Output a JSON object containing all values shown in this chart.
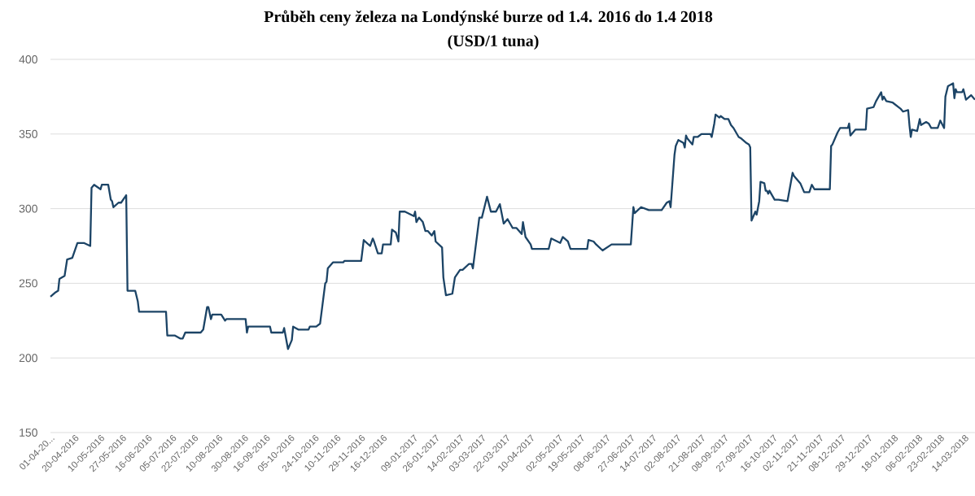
{
  "chart_data": {
    "type": "line",
    "title": "Průběh ceny železa na Londýnské burze od 1.4. 2016 do 1.4 2018",
    "subtitle": "(USD/1 tuna)",
    "x": [
      "2016-04-01",
      "2016-04-05",
      "2016-04-07",
      "2016-04-08",
      "2016-04-12",
      "2016-04-14",
      "2016-04-18",
      "2016-04-22",
      "2016-04-27",
      "2016-05-02",
      "2016-05-03",
      "2016-05-05",
      "2016-05-10",
      "2016-05-11",
      "2016-05-16",
      "2016-05-18",
      "2016-05-19",
      "2016-05-20",
      "2016-05-24",
      "2016-05-26",
      "2016-05-30",
      "2016-05-31",
      "2016-06-06",
      "2016-06-08",
      "2016-06-09",
      "2016-06-30",
      "2016-07-01",
      "2016-07-07",
      "2016-07-11",
      "2016-07-13",
      "2016-07-15",
      "2016-07-27",
      "2016-07-29",
      "2016-08-01",
      "2016-08-02",
      "2016-08-04",
      "2016-08-05",
      "2016-08-12",
      "2016-08-15",
      "2016-08-16",
      "2016-08-31",
      "2016-09-01",
      "2016-09-02",
      "2016-09-19",
      "2016-09-20",
      "2016-09-29",
      "2016-09-30",
      "2016-10-03",
      "2016-10-04",
      "2016-10-06",
      "2016-10-07",
      "2016-10-11",
      "2016-10-19",
      "2016-10-20",
      "2016-10-25",
      "2016-10-28",
      "2016-11-01",
      "2016-11-02",
      "2016-11-03",
      "2016-11-07",
      "2016-11-15",
      "2016-11-16",
      "2016-11-29",
      "2016-12-01",
      "2016-12-02",
      "2016-12-06",
      "2016-12-08",
      "2016-12-09",
      "2016-12-12",
      "2016-12-15",
      "2016-12-16",
      "2016-12-22",
      "2016-12-23",
      "2016-12-26",
      "2016-12-28",
      "2016-12-29",
      "2017-01-02",
      "2017-01-09",
      "2017-01-10",
      "2017-01-11",
      "2017-01-13",
      "2017-01-16",
      "2017-01-18",
      "2017-01-20",
      "2017-01-23",
      "2017-01-25",
      "2017-01-26",
      "2017-01-31",
      "2017-02-01",
      "2017-02-03",
      "2017-02-08",
      "2017-02-10",
      "2017-02-14",
      "2017-02-16",
      "2017-02-21",
      "2017-02-23",
      "2017-02-24",
      "2017-03-01",
      "2017-03-03",
      "2017-03-07",
      "2017-03-10",
      "2017-03-14",
      "2017-03-17",
      "2017-03-20",
      "2017-03-23",
      "2017-03-27",
      "2017-03-30",
      "2017-04-03",
      "2017-04-04",
      "2017-04-06",
      "2017-04-10",
      "2017-04-11",
      "2017-04-24",
      "2017-04-26",
      "2017-05-03",
      "2017-05-05",
      "2017-05-09",
      "2017-05-11",
      "2017-05-24",
      "2017-05-25",
      "2017-05-29",
      "2017-05-31",
      "2017-06-05",
      "2017-06-12",
      "2017-06-27",
      "2017-06-29",
      "2017-06-30",
      "2017-07-05",
      "2017-07-11",
      "2017-07-21",
      "2017-07-25",
      "2017-07-27",
      "2017-07-28",
      "2017-07-31",
      "2017-08-01",
      "2017-08-03",
      "2017-08-07",
      "2017-08-08",
      "2017-08-09",
      "2017-08-10",
      "2017-08-14",
      "2017-08-15",
      "2017-08-18",
      "2017-08-21",
      "2017-08-28",
      "2017-08-29",
      "2017-08-31",
      "2017-09-01",
      "2017-09-04",
      "2017-09-05",
      "2017-09-08",
      "2017-09-11",
      "2017-09-13",
      "2017-09-15",
      "2017-09-19",
      "2017-09-21",
      "2017-09-25",
      "2017-09-27",
      "2017-09-28",
      "2017-09-29",
      "2017-10-02",
      "2017-10-03",
      "2017-10-05",
      "2017-10-06",
      "2017-10-09",
      "2017-10-10",
      "2017-10-11",
      "2017-10-12",
      "2017-10-13",
      "2017-10-17",
      "2017-10-20",
      "2017-10-27",
      "2017-10-31",
      "2017-11-01",
      "2017-11-06",
      "2017-11-09",
      "2017-11-13",
      "2017-11-15",
      "2017-11-17",
      "2017-11-24",
      "2017-11-29",
      "2017-11-30",
      "2017-12-01",
      "2017-12-05",
      "2017-12-07",
      "2017-12-08",
      "2017-12-13",
      "2017-12-14",
      "2017-12-15",
      "2017-12-19",
      "2017-12-27",
      "2017-12-28",
      "2018-01-02",
      "2018-01-04",
      "2018-01-08",
      "2018-01-09",
      "2018-01-10",
      "2018-01-12",
      "2018-01-17",
      "2018-01-23",
      "2018-01-25",
      "2018-01-29",
      "2018-01-30",
      "2018-01-31",
      "2018-02-01",
      "2018-02-05",
      "2018-02-07",
      "2018-02-08",
      "2018-02-12",
      "2018-02-14",
      "2018-02-16",
      "2018-02-21",
      "2018-02-23",
      "2018-02-26",
      "2018-02-27",
      "2018-03-01",
      "2018-03-05",
      "2018-03-06",
      "2018-03-07",
      "2018-03-08",
      "2018-03-12",
      "2018-03-13",
      "2018-03-15",
      "2018-03-19",
      "2018-03-22"
    ],
    "series": [
      {
        "color": "#1c4466",
        "values": [
          241,
          244,
          245,
          253,
          255,
          266,
          267,
          277,
          277,
          275,
          314,
          316,
          313,
          316,
          316,
          306,
          305,
          301,
          304,
          304,
          309,
          245,
          245,
          238,
          231,
          231,
          215,
          215,
          213,
          213,
          217,
          217,
          219,
          234,
          234,
          226,
          229,
          229,
          225,
          226,
          226,
          217,
          221,
          221,
          217,
          217,
          220,
          206,
          208,
          212,
          221,
          219,
          219,
          221,
          221,
          223,
          250,
          251,
          260,
          264,
          264,
          265,
          265,
          279,
          278,
          275,
          280,
          278,
          270,
          270,
          276,
          276,
          286,
          284,
          278,
          298,
          298,
          295,
          298,
          291,
          294,
          291,
          285,
          285,
          282,
          285,
          278,
          274,
          254,
          242,
          243,
          254,
          259,
          259,
          263,
          263,
          260,
          294,
          294,
          308,
          298,
          298,
          303,
          290,
          293,
          287,
          287,
          283,
          291,
          281,
          276,
          273,
          273,
          280,
          277,
          281,
          278,
          273,
          273,
          279,
          278,
          276,
          272,
          276,
          276,
          301,
          297,
          301,
          299,
          299,
          304,
          305,
          301,
          336,
          342,
          346,
          344,
          341,
          349,
          347,
          343,
          348,
          348,
          350,
          350,
          348,
          357,
          363,
          361,
          362,
          360,
          360,
          356,
          354,
          348,
          347,
          344,
          343,
          341,
          292,
          298,
          296,
          305,
          318,
          317,
          312,
          312,
          310,
          312,
          306,
          306,
          305,
          324,
          322,
          317,
          311,
          311,
          316,
          313,
          313,
          313,
          342,
          343,
          351,
          354,
          354,
          354,
          357,
          349,
          353,
          353,
          367,
          368,
          372,
          378,
          373,
          375,
          372,
          371,
          367,
          365,
          366,
          356,
          348,
          353,
          352,
          360,
          356,
          358,
          357,
          354,
          354,
          359,
          354,
          375,
          382,
          384,
          374,
          380,
          378,
          378,
          380,
          373,
          376,
          373
        ]
      }
    ],
    "xlim": [
      "2016-04-01",
      "2018-03-22"
    ],
    "xticks": [
      {
        "value": "2016-04-01",
        "label": "01-04-20..."
      },
      {
        "value": "2016-04-20",
        "label": "20-04-2016"
      },
      {
        "value": "2016-05-10",
        "label": "10-05-2016"
      },
      {
        "value": "2016-05-27",
        "label": "27-05-2016"
      },
      {
        "value": "2016-06-16",
        "label": "16-06-2016"
      },
      {
        "value": "2016-07-05",
        "label": "05-07-2016"
      },
      {
        "value": "2016-07-22",
        "label": "22-07-2016"
      },
      {
        "value": "2016-08-10",
        "label": "10-08-2016"
      },
      {
        "value": "2016-08-30",
        "label": "30-08-2016"
      },
      {
        "value": "2016-09-16",
        "label": "16-09-2016"
      },
      {
        "value": "2016-10-05",
        "label": "05-10-2016"
      },
      {
        "value": "2016-10-24",
        "label": "24-10-2016"
      },
      {
        "value": "2016-11-10",
        "label": "10-11-2016"
      },
      {
        "value": "2016-11-29",
        "label": "29-11-2016"
      },
      {
        "value": "2016-12-16",
        "label": "16-12-2016"
      },
      {
        "value": "2017-01-09",
        "label": "09-01-2017"
      },
      {
        "value": "2017-01-26",
        "label": "26-01-2017"
      },
      {
        "value": "2017-02-14",
        "label": "14-02-2017"
      },
      {
        "value": "2017-03-03",
        "label": "03-03-2017"
      },
      {
        "value": "2017-03-22",
        "label": "22-03-2017"
      },
      {
        "value": "2017-04-10",
        "label": "10-04-2017"
      },
      {
        "value": "2017-05-02",
        "label": "02-05-2017"
      },
      {
        "value": "2017-05-19",
        "label": "19-05-2017"
      },
      {
        "value": "2017-06-08",
        "label": "08-06-2017"
      },
      {
        "value": "2017-06-27",
        "label": "27-06-2017"
      },
      {
        "value": "2017-07-14",
        "label": "14-07-2017"
      },
      {
        "value": "2017-08-02",
        "label": "02-08-2017"
      },
      {
        "value": "2017-08-21",
        "label": "21-08-2017"
      },
      {
        "value": "2017-09-08",
        "label": "08-09-2017"
      },
      {
        "value": "2017-09-27",
        "label": "27-09-2017"
      },
      {
        "value": "2017-10-16",
        "label": "16-10-2017"
      },
      {
        "value": "2017-11-02",
        "label": "02-11-2017"
      },
      {
        "value": "2017-11-21",
        "label": "21-11-2017"
      },
      {
        "value": "2017-12-08",
        "label": "08-12-2017"
      },
      {
        "value": "2017-12-29",
        "label": "29-12-2017"
      },
      {
        "value": "2018-01-18",
        "label": "18-01-2018"
      },
      {
        "value": "2018-02-06",
        "label": "06-02-2018"
      },
      {
        "value": "2018-02-23",
        "label": "23-02-2018"
      },
      {
        "value": "2018-03-14",
        "label": "14-03-2018"
      }
    ],
    "ylim": [
      150,
      400
    ],
    "yticks": [
      150,
      200,
      250,
      300,
      350,
      400
    ],
    "grid": "y"
  }
}
